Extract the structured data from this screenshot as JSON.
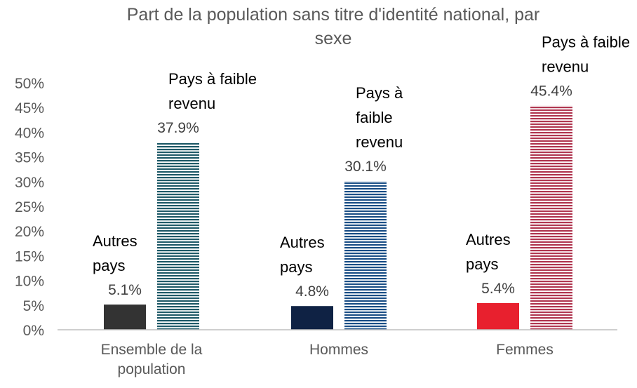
{
  "chart_data": {
    "type": "bar",
    "title": "Part de la population sans titre d'identité national, par",
    "title_line2": "sexe",
    "categories": [
      [
        "Ensemble de la",
        "population"
      ],
      [
        "Hommes"
      ],
      [
        "Femmes"
      ]
    ],
    "ylim": [
      0,
      50
    ],
    "yticks": [
      "0%",
      "5%",
      "10%",
      "15%",
      "20%",
      "25%",
      "30%",
      "35%",
      "40%",
      "45%",
      "50%"
    ],
    "grid": false,
    "bars": [
      {
        "category_index": 0,
        "slot": 0,
        "value": 5.1,
        "label": "5.1%",
        "series_label": [
          "Autres",
          "pays"
        ],
        "color": "#333333",
        "hatched": false
      },
      {
        "category_index": 0,
        "slot": 1,
        "value": 37.9,
        "label": "37.9%",
        "series_label": [
          "Pays à faible",
          "revenu"
        ],
        "color": "#1f5a68",
        "hatched": true
      },
      {
        "category_index": 1,
        "slot": 0,
        "value": 4.8,
        "label": "4.8%",
        "series_label": [
          "Autres",
          "pays"
        ],
        "color": "#0f2244",
        "hatched": false
      },
      {
        "category_index": 1,
        "slot": 1,
        "value": 30.1,
        "label": "30.1%",
        "series_label": [
          "Pays à",
          "faible",
          "revenu"
        ],
        "color": "#1a4e86",
        "hatched": true
      },
      {
        "category_index": 2,
        "slot": 0,
        "value": 5.4,
        "label": "5.4%",
        "series_label": [
          "Autres",
          "pays"
        ],
        "color": "#e8202e",
        "hatched": false
      },
      {
        "category_index": 2,
        "slot": 1,
        "value": 45.4,
        "label": "45.4%",
        "series_label": [
          "Pays à faible",
          "revenu"
        ],
        "color": "#b03650",
        "hatched": true
      }
    ]
  }
}
